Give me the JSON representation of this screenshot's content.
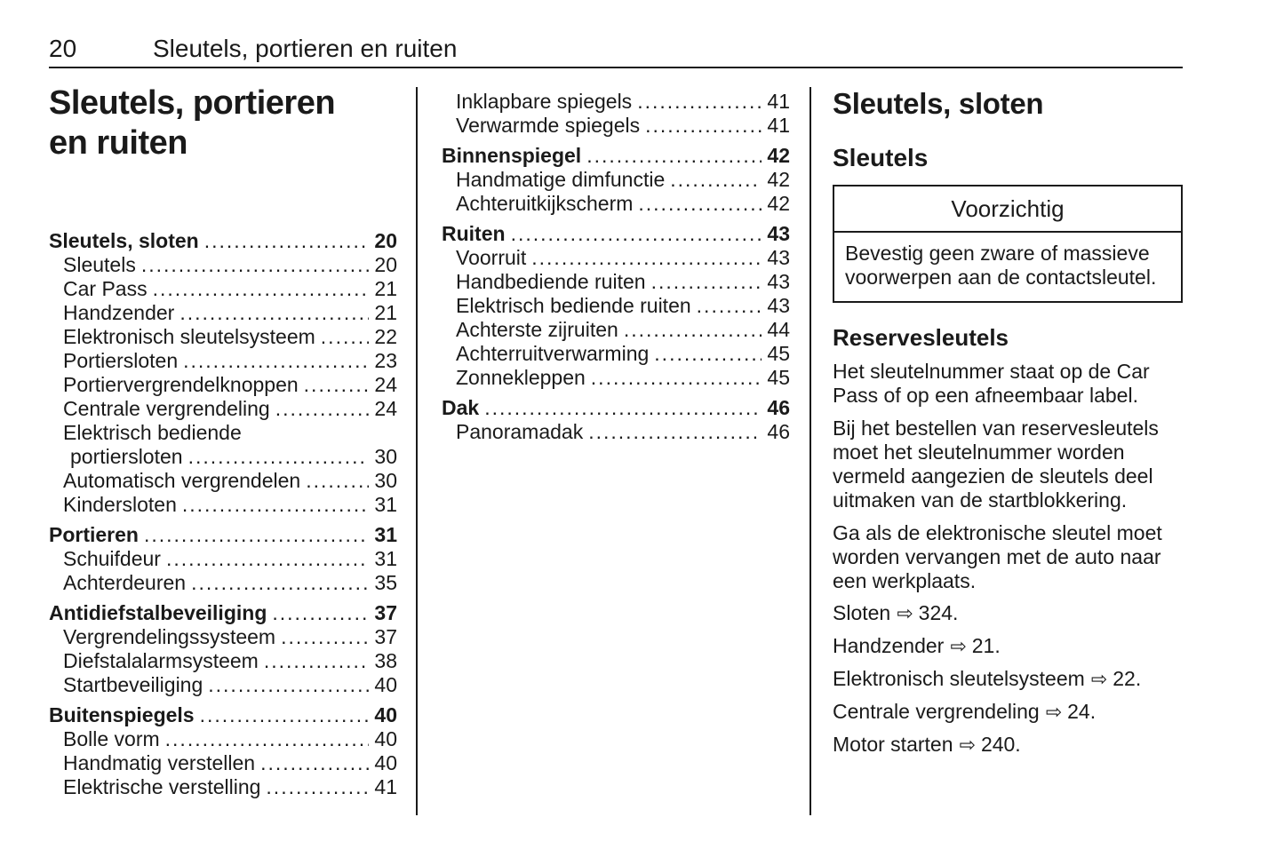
{
  "colors": {
    "text": "#1a1a1a",
    "background": "#ffffff",
    "rule": "#1a1a1a"
  },
  "page": {
    "number": "20",
    "header_title": "Sleutels, portieren en ruiten"
  },
  "left_column": {
    "title_line1": "Sleutels, portieren",
    "title_line2": "en ruiten",
    "toc": [
      {
        "label": "Sleutels, sloten",
        "page": "20",
        "style": "main"
      },
      {
        "label": "Sleutels",
        "page": "20",
        "style": "sub"
      },
      {
        "label": "Car Pass",
        "page": "21",
        "style": "sub"
      },
      {
        "label": "Handzender",
        "page": "21",
        "style": "sub"
      },
      {
        "label": "Elektronisch sleutelsysteem",
        "page": "22",
        "style": "sub"
      },
      {
        "label": "Portiersloten",
        "page": "23",
        "style": "sub"
      },
      {
        "label": "Portiervergrendelknoppen",
        "page": "24",
        "style": "sub"
      },
      {
        "label": "Centrale vergrendeling",
        "page": "24",
        "style": "sub"
      },
      {
        "label": "Elektrisch bediende",
        "page": null,
        "style": "sub"
      },
      {
        "label": "portiersloten",
        "page": "30",
        "style": "sub",
        "cont": true
      },
      {
        "label": "Automatisch vergrendelen",
        "page": "30",
        "style": "sub"
      },
      {
        "label": "Kindersloten",
        "page": "31",
        "style": "sub"
      },
      {
        "label": "Portieren",
        "page": "31",
        "style": "main",
        "gap": true
      },
      {
        "label": "Schuifdeur",
        "page": "31",
        "style": "sub"
      },
      {
        "label": "Achterdeuren",
        "page": "35",
        "style": "sub"
      },
      {
        "label": "Antidiefstalbeveiliging",
        "page": "37",
        "style": "main",
        "gap": true
      },
      {
        "label": "Vergrendelingssysteem",
        "page": "37",
        "style": "sub"
      },
      {
        "label": "Diefstalalarmsysteem",
        "page": "38",
        "style": "sub"
      },
      {
        "label": "Startbeveiliging",
        "page": "40",
        "style": "sub"
      },
      {
        "label": "Buitenspiegels",
        "page": "40",
        "style": "main",
        "gap": true
      },
      {
        "label": "Bolle vorm",
        "page": "40",
        "style": "sub"
      },
      {
        "label": "Handmatig verstellen",
        "page": "40",
        "style": "sub"
      },
      {
        "label": "Elektrische verstelling",
        "page": "41",
        "style": "sub"
      }
    ]
  },
  "middle_column": {
    "toc": [
      {
        "label": "Inklapbare spiegels",
        "page": "41",
        "style": "sub"
      },
      {
        "label": "Verwarmde spiegels",
        "page": "41",
        "style": "sub"
      },
      {
        "label": "Binnenspiegel",
        "page": "42",
        "style": "main",
        "gap": true
      },
      {
        "label": "Handmatige dimfunctie",
        "page": "42",
        "style": "sub"
      },
      {
        "label": "Achteruitkijkscherm",
        "page": "42",
        "style": "sub"
      },
      {
        "label": "Ruiten",
        "page": "43",
        "style": "main",
        "gap": true
      },
      {
        "label": "Voorruit",
        "page": "43",
        "style": "sub"
      },
      {
        "label": "Handbediende ruiten",
        "page": "43",
        "style": "sub"
      },
      {
        "label": "Elektrisch bediende ruiten",
        "page": "43",
        "style": "sub"
      },
      {
        "label": "Achterste zijruiten",
        "page": "44",
        "style": "sub"
      },
      {
        "label": "Achterruitverwarming",
        "page": "45",
        "style": "sub"
      },
      {
        "label": "Zonnekleppen",
        "page": "45",
        "style": "sub"
      },
      {
        "label": "Dak",
        "page": "46",
        "style": "main",
        "gap": true
      },
      {
        "label": "Panoramadak",
        "page": "46",
        "style": "sub"
      }
    ]
  },
  "right_column": {
    "section_title": "Sleutels, sloten",
    "subsection_title": "Sleutels",
    "caution_box": {
      "title": "Voorzichtig",
      "body_lines": [
        "Bevestig geen zware of massieve",
        "voorwerpen aan de contactsleutel."
      ]
    },
    "subheading": "Reservesleutels",
    "paragraphs": [
      [
        "Het sleutelnummer staat op de Car",
        "Pass of op een afneembaar label."
      ],
      [
        "Bij het bestellen van reservesleutels",
        "moet het sleutelnummer worden",
        "vermeld aangezien de sleutels deel",
        "uitmaken van de startblokkering."
      ],
      [
        "Ga als de elektronische sleutel moet",
        "worden vervangen met de auto naar",
        "een werkplaats."
      ]
    ],
    "reference_arrow": "⇨",
    "references": [
      {
        "label": "Sloten",
        "page": "324"
      },
      {
        "label": "Handzender",
        "page": "21"
      },
      {
        "label": "Elektronisch sleutelsysteem",
        "page": "22"
      },
      {
        "label": "Centrale vergrendeling",
        "page": "24"
      },
      {
        "label": "Motor starten",
        "page": "240"
      }
    ]
  }
}
